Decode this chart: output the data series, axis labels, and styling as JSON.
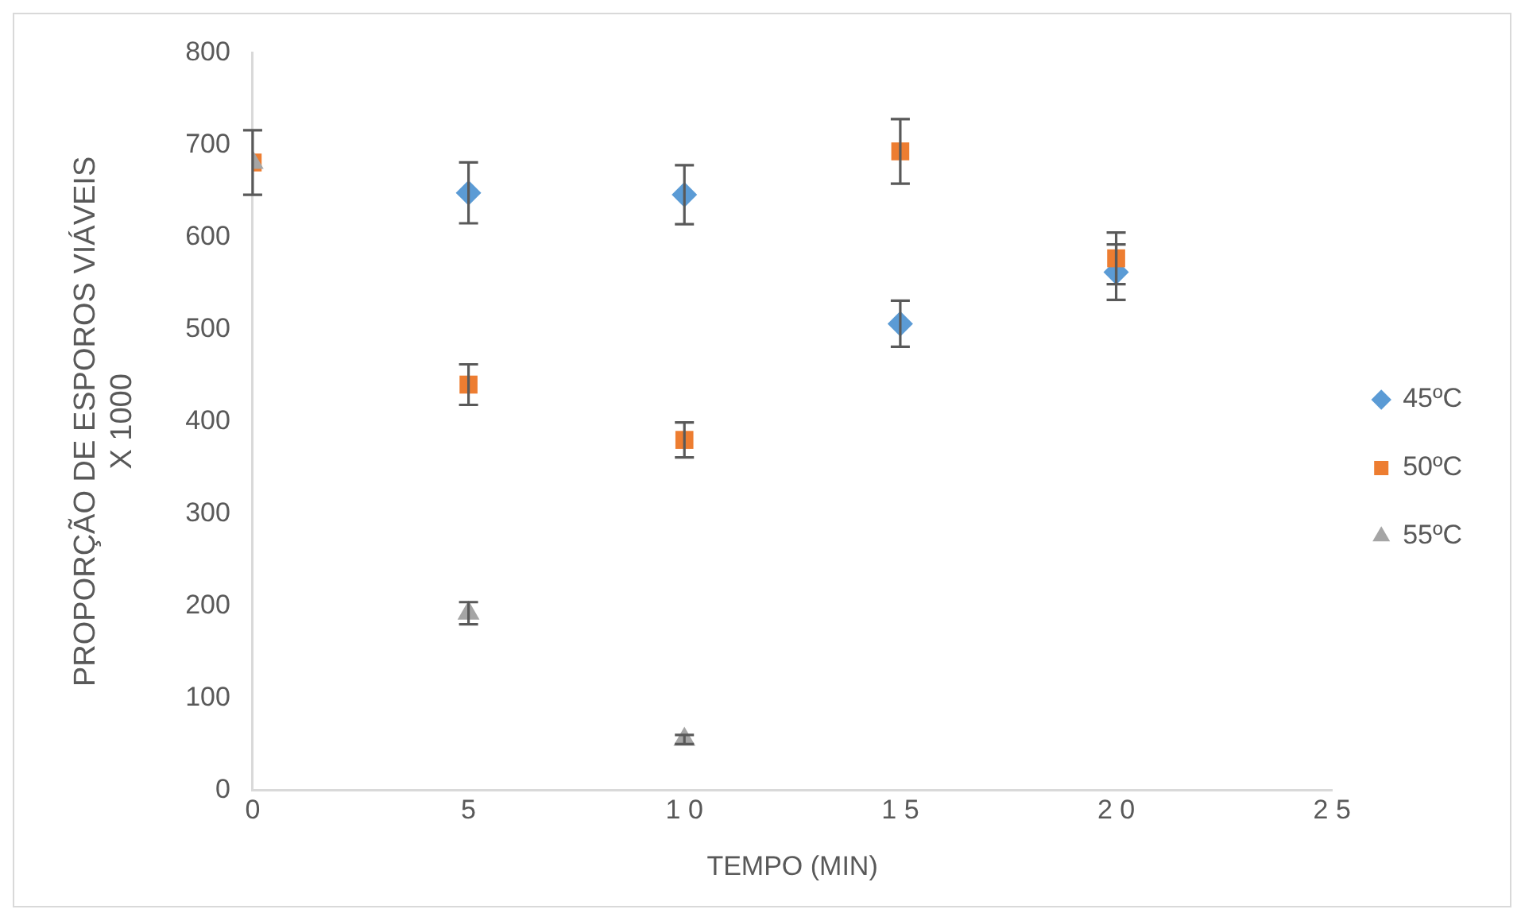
{
  "chart_data": {
    "type": "scatter",
    "xlabel": "TEMPO (MIN)",
    "ylabel": "PROPORÇÃO DE ESPOROS VIÁVEIS X 1000",
    "x": [
      0,
      5,
      10,
      15,
      20
    ],
    "series": [
      {
        "name": "45ºC",
        "color": "#5b9bd5",
        "marker": "diamond",
        "values": [
          null,
          648,
          646,
          506,
          562
        ],
        "errors": [
          null,
          33,
          32,
          25,
          30
        ]
      },
      {
        "name": "50ºC",
        "color": "#ed7d31",
        "marker": "square",
        "values": [
          681,
          440,
          380,
          693,
          577
        ],
        "errors": [
          35,
          22,
          19,
          35,
          28
        ]
      },
      {
        "name": "55ºC",
        "color": "#a5a5a5",
        "marker": "triangle",
        "values": [
          681,
          192,
          55,
          null,
          null
        ],
        "errors": [
          null,
          12,
          5,
          null,
          null
        ]
      }
    ],
    "xlim": [
      0,
      25
    ],
    "xticks": [
      0,
      5,
      10,
      15,
      20,
      25
    ],
    "ylim": [
      0,
      800
    ],
    "yticks": [
      0,
      100,
      200,
      300,
      400,
      500,
      600,
      700,
      800
    ],
    "grid": false,
    "legend": "right"
  }
}
